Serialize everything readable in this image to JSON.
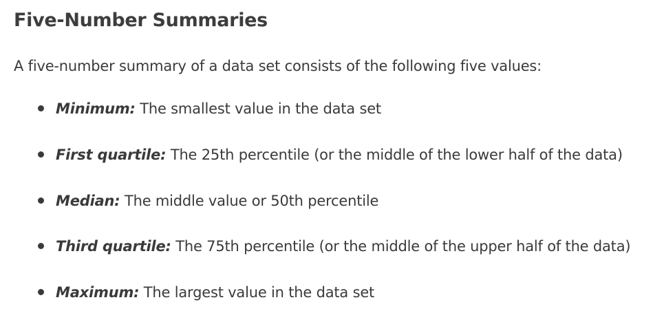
{
  "section": {
    "title": "Five-Number Summaries",
    "intro": "A five-number summary of a data set consists of the following five values:"
  },
  "items": [
    {
      "term": "Minimum:",
      "description": " The smallest value in the data set"
    },
    {
      "term": "First quartile:",
      "description": " The 25th percentile (or the middle of the lower half of the data)"
    },
    {
      "term": "Median:",
      "description": " The middle value or 50th percentile"
    },
    {
      "term": "Third quartile:",
      "description": " The 75th percentile (or the middle of the upper half of the data)"
    },
    {
      "term": "Maximum:",
      "description": " The largest value in the data set"
    }
  ]
}
